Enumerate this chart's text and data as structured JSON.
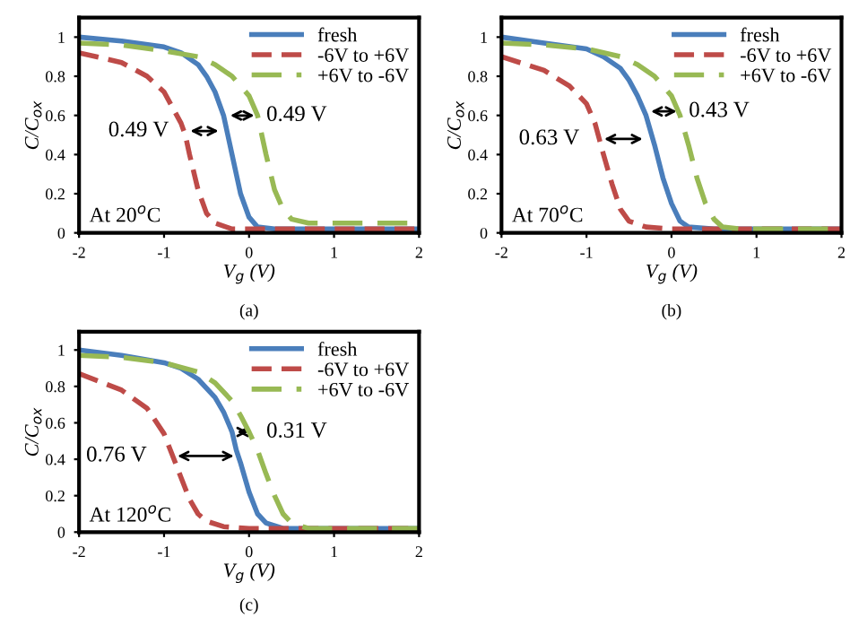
{
  "chart_data": [
    {
      "type": "line",
      "xlabel": "V$_{g}$ (V)",
      "ylabel": "C/C$_{ox}$",
      "xlim": [
        -2,
        2
      ],
      "ylim": [
        0,
        1.1
      ],
      "xticks": [
        -2,
        -1,
        0,
        1,
        2
      ],
      "yticks": [
        0,
        0.2,
        0.4,
        0.6,
        0.8,
        1
      ],
      "legend": "top right",
      "grid": false,
      "series": [
        {
          "name": "fresh",
          "color": "#4a7ebb",
          "line_style": "solid",
          "x": [
            -2,
            -1.5,
            -1,
            -0.8,
            -0.6,
            -0.5,
            -0.4,
            -0.3,
            -0.25,
            -0.2,
            -0.1,
            0,
            0.1,
            0.3,
            1,
            2
          ],
          "values": [
            1.0,
            0.98,
            0.95,
            0.92,
            0.86,
            0.8,
            0.72,
            0.6,
            0.5,
            0.4,
            0.2,
            0.08,
            0.03,
            0.02,
            0.02,
            0.02
          ]
        },
        {
          "name": "-6V to +6V",
          "color": "#be4b48",
          "line_style": "dashed",
          "x": [
            -2,
            -1.5,
            -1.2,
            -1,
            -0.9,
            -0.8,
            -0.75,
            -0.7,
            -0.6,
            -0.5,
            -0.4,
            -0.2,
            0,
            2
          ],
          "values": [
            0.92,
            0.87,
            0.8,
            0.72,
            0.64,
            0.56,
            0.5,
            0.4,
            0.22,
            0.1,
            0.05,
            0.02,
            0.02,
            0.02
          ]
        },
        {
          "name": "+6V to -6V",
          "color": "#98b954",
          "line_style": "dashed",
          "x": [
            -2,
            -1.5,
            -1,
            -0.6,
            -0.4,
            -0.2,
            0,
            0.1,
            0.2,
            0.3,
            0.4,
            0.5,
            0.7,
            1,
            2
          ],
          "values": [
            0.97,
            0.96,
            0.93,
            0.9,
            0.86,
            0.8,
            0.7,
            0.6,
            0.4,
            0.22,
            0.12,
            0.07,
            0.05,
            0.05,
            0.05
          ]
        }
      ],
      "annotations": [
        "0.49 V",
        "0.49 V",
        "At 20$^{o}$C",
        "(a)"
      ]
    },
    {
      "type": "line",
      "xlabel": "V$_{g}$ (V)",
      "ylabel": "C/C$_{ox}$",
      "xlim": [
        -2,
        2
      ],
      "ylim": [
        0,
        1.1
      ],
      "xticks": [
        -2,
        -1,
        0,
        1,
        2
      ],
      "yticks": [
        0,
        0.2,
        0.4,
        0.6,
        0.8,
        1
      ],
      "legend": "top right",
      "grid": false,
      "series": [
        {
          "name": "fresh",
          "color": "#4a7ebb",
          "line_style": "solid",
          "x": [
            -2,
            -1.5,
            -1,
            -0.8,
            -0.6,
            -0.5,
            -0.4,
            -0.3,
            -0.2,
            -0.1,
            0,
            0.1,
            0.2,
            0.5,
            2
          ],
          "values": [
            1.0,
            0.97,
            0.94,
            0.9,
            0.84,
            0.78,
            0.7,
            0.6,
            0.45,
            0.28,
            0.15,
            0.06,
            0.03,
            0.02,
            0.02
          ]
        },
        {
          "name": "-6V to +6V",
          "color": "#be4b48",
          "line_style": "dashed",
          "x": [
            -2,
            -1.5,
            -1.2,
            -1,
            -0.9,
            -0.85,
            -0.8,
            -0.7,
            -0.6,
            -0.5,
            -0.3,
            0,
            2
          ],
          "values": [
            0.9,
            0.83,
            0.75,
            0.66,
            0.56,
            0.48,
            0.4,
            0.25,
            0.12,
            0.06,
            0.03,
            0.02,
            0.02
          ]
        },
        {
          "name": "+6V to -6V",
          "color": "#98b954",
          "line_style": "dashed",
          "x": [
            -2,
            -1.5,
            -1,
            -0.6,
            -0.4,
            -0.2,
            0,
            0.1,
            0.2,
            0.3,
            0.4,
            0.5,
            0.6,
            0.8,
            2
          ],
          "values": [
            0.97,
            0.96,
            0.94,
            0.9,
            0.86,
            0.8,
            0.7,
            0.6,
            0.45,
            0.28,
            0.15,
            0.07,
            0.03,
            0.02,
            0.02
          ]
        }
      ],
      "annotations": [
        "0.63 V",
        "0.43 V",
        "At 70$^{o}$C",
        "(b)"
      ]
    },
    {
      "type": "line",
      "xlabel": "V$_{g}$ (V)",
      "ylabel": "C/C$_{ox}$",
      "xlim": [
        -2,
        2
      ],
      "ylim": [
        0,
        1.1
      ],
      "xticks": [
        -2,
        -1,
        0,
        1,
        2
      ],
      "yticks": [
        0,
        0.2,
        0.4,
        0.6,
        0.8,
        1
      ],
      "legend": "top right",
      "grid": false,
      "series": [
        {
          "name": "fresh",
          "color": "#4a7ebb",
          "line_style": "solid",
          "x": [
            -2,
            -1.5,
            -1,
            -0.8,
            -0.6,
            -0.4,
            -0.3,
            -0.2,
            -0.15,
            -0.1,
            0,
            0.1,
            0.2,
            0.4,
            2
          ],
          "values": [
            1.0,
            0.97,
            0.93,
            0.9,
            0.84,
            0.74,
            0.66,
            0.55,
            0.45,
            0.38,
            0.22,
            0.1,
            0.05,
            0.02,
            0.02
          ]
        },
        {
          "name": "-6V to +6V",
          "color": "#be4b48",
          "line_style": "dashed",
          "x": [
            -2,
            -1.5,
            -1.2,
            -1,
            -0.9,
            -0.8,
            -0.7,
            -0.6,
            -0.5,
            -0.3,
            0,
            2
          ],
          "values": [
            0.87,
            0.78,
            0.68,
            0.54,
            0.42,
            0.3,
            0.18,
            0.1,
            0.06,
            0.03,
            0.02,
            0.02
          ]
        },
        {
          "name": "+6V to -6V",
          "color": "#98b954",
          "line_style": "dashed",
          "x": [
            -2,
            -1.5,
            -1,
            -0.6,
            -0.4,
            -0.2,
            -0.1,
            0,
            0.1,
            0.2,
            0.3,
            0.4,
            0.5,
            0.7,
            2
          ],
          "values": [
            0.97,
            0.96,
            0.93,
            0.88,
            0.82,
            0.72,
            0.64,
            0.55,
            0.45,
            0.32,
            0.2,
            0.1,
            0.05,
            0.02,
            0.02
          ]
        }
      ],
      "annotations": [
        "0.76 V",
        "0.31 V",
        "At 120$^{o}$C",
        "(c)"
      ]
    }
  ]
}
